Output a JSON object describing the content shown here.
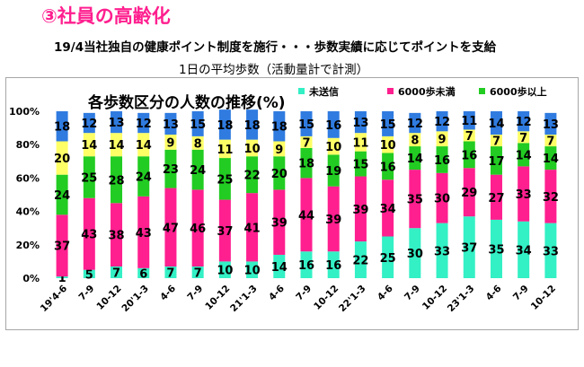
{
  "page": {
    "heading": "③社員の高齢化",
    "subheading": "19/4当社独自の健康ポイント制度を施行・・・歩数実績に応じてポイントを支給",
    "caption": "1日の平均歩数（活動量計で計測）"
  },
  "colors": {
    "未送信": "#33f0c5",
    "6000歩未満": "#ff1f8f",
    "6000歩以上": "#22cc22",
    "segment_4": "#ffff66",
    "segment_5": "#2f7be0"
  },
  "chart_data": {
    "type": "bar",
    "stacked": true,
    "title": "各歩数区分の人数の推移(%)",
    "xlabel": "",
    "ylabel": "",
    "ylim": [
      0,
      100
    ],
    "yticks": [
      "0%",
      "20%",
      "40%",
      "60%",
      "80%",
      "100%"
    ],
    "grid": false,
    "legend_position": "top-right",
    "categories": [
      "19'4-6",
      "7-9",
      "10-12",
      "20'1-3",
      "4-6",
      "7-9",
      "10-12",
      "21'1-3",
      "4-6",
      "7-9",
      "10-12",
      "22'1-3",
      "4-6",
      "7-9",
      "10-12",
      "23'1-3",
      "4-6",
      "7-9",
      "10-12"
    ],
    "series": [
      {
        "name": "未送信",
        "values": [
          1,
          5,
          7,
          6,
          7,
          7,
          10,
          10,
          14,
          16,
          16,
          22,
          25,
          30,
          33,
          37,
          35,
          34,
          33
        ]
      },
      {
        "name": "6000歩未満",
        "values": [
          37,
          43,
          38,
          43,
          47,
          46,
          37,
          41,
          39,
          44,
          39,
          39,
          34,
          35,
          30,
          29,
          27,
          33,
          32
        ]
      },
      {
        "name": "6000歩以上",
        "values": [
          24,
          25,
          28,
          24,
          23,
          24,
          25,
          22,
          20,
          18,
          19,
          15,
          16,
          14,
          16,
          16,
          17,
          14,
          14
        ]
      },
      {
        "values": [
          20,
          14,
          14,
          14,
          9,
          8,
          11,
          10,
          9,
          7,
          10,
          11,
          10,
          8,
          9,
          7,
          7,
          7,
          7
        ]
      },
      {
        "values": [
          18,
          12,
          13,
          12,
          13,
          15,
          18,
          18,
          18,
          15,
          16,
          13,
          15,
          12,
          12,
          11,
          14,
          12,
          13
        ]
      }
    ]
  }
}
